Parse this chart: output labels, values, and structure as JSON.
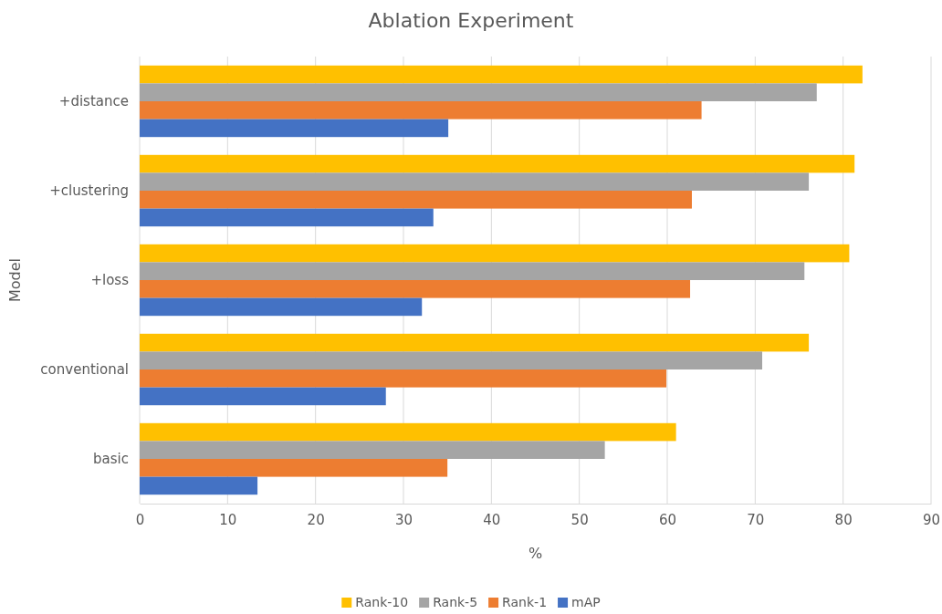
{
  "chart_data": {
    "type": "bar",
    "orientation": "horizontal",
    "title": "Ablation Experiment",
    "xlabel": "%",
    "ylabel": "Model",
    "categories": [
      "+distance",
      "+clustering",
      "+loss",
      "conventional",
      "basic"
    ],
    "series": [
      {
        "name": "Rank-10",
        "color": "#ffc000",
        "values": [
          82.2,
          81.3,
          80.7,
          76.1,
          61.0
        ]
      },
      {
        "name": "Rank-5",
        "color": "#a5a5a5",
        "values": [
          77.0,
          76.1,
          75.6,
          70.8,
          52.9
        ]
      },
      {
        "name": "Rank-1",
        "color": "#ed7d31",
        "values": [
          63.9,
          62.8,
          62.6,
          59.9,
          35.0
        ]
      },
      {
        "name": "mAP",
        "color": "#4472c4",
        "values": [
          35.1,
          33.4,
          32.1,
          28.0,
          13.4
        ]
      }
    ],
    "xlim": [
      0,
      90
    ],
    "xticks": [
      0,
      10,
      20,
      30,
      40,
      50,
      60,
      70,
      80,
      90
    ],
    "grid": "x",
    "legend": "bottom"
  }
}
